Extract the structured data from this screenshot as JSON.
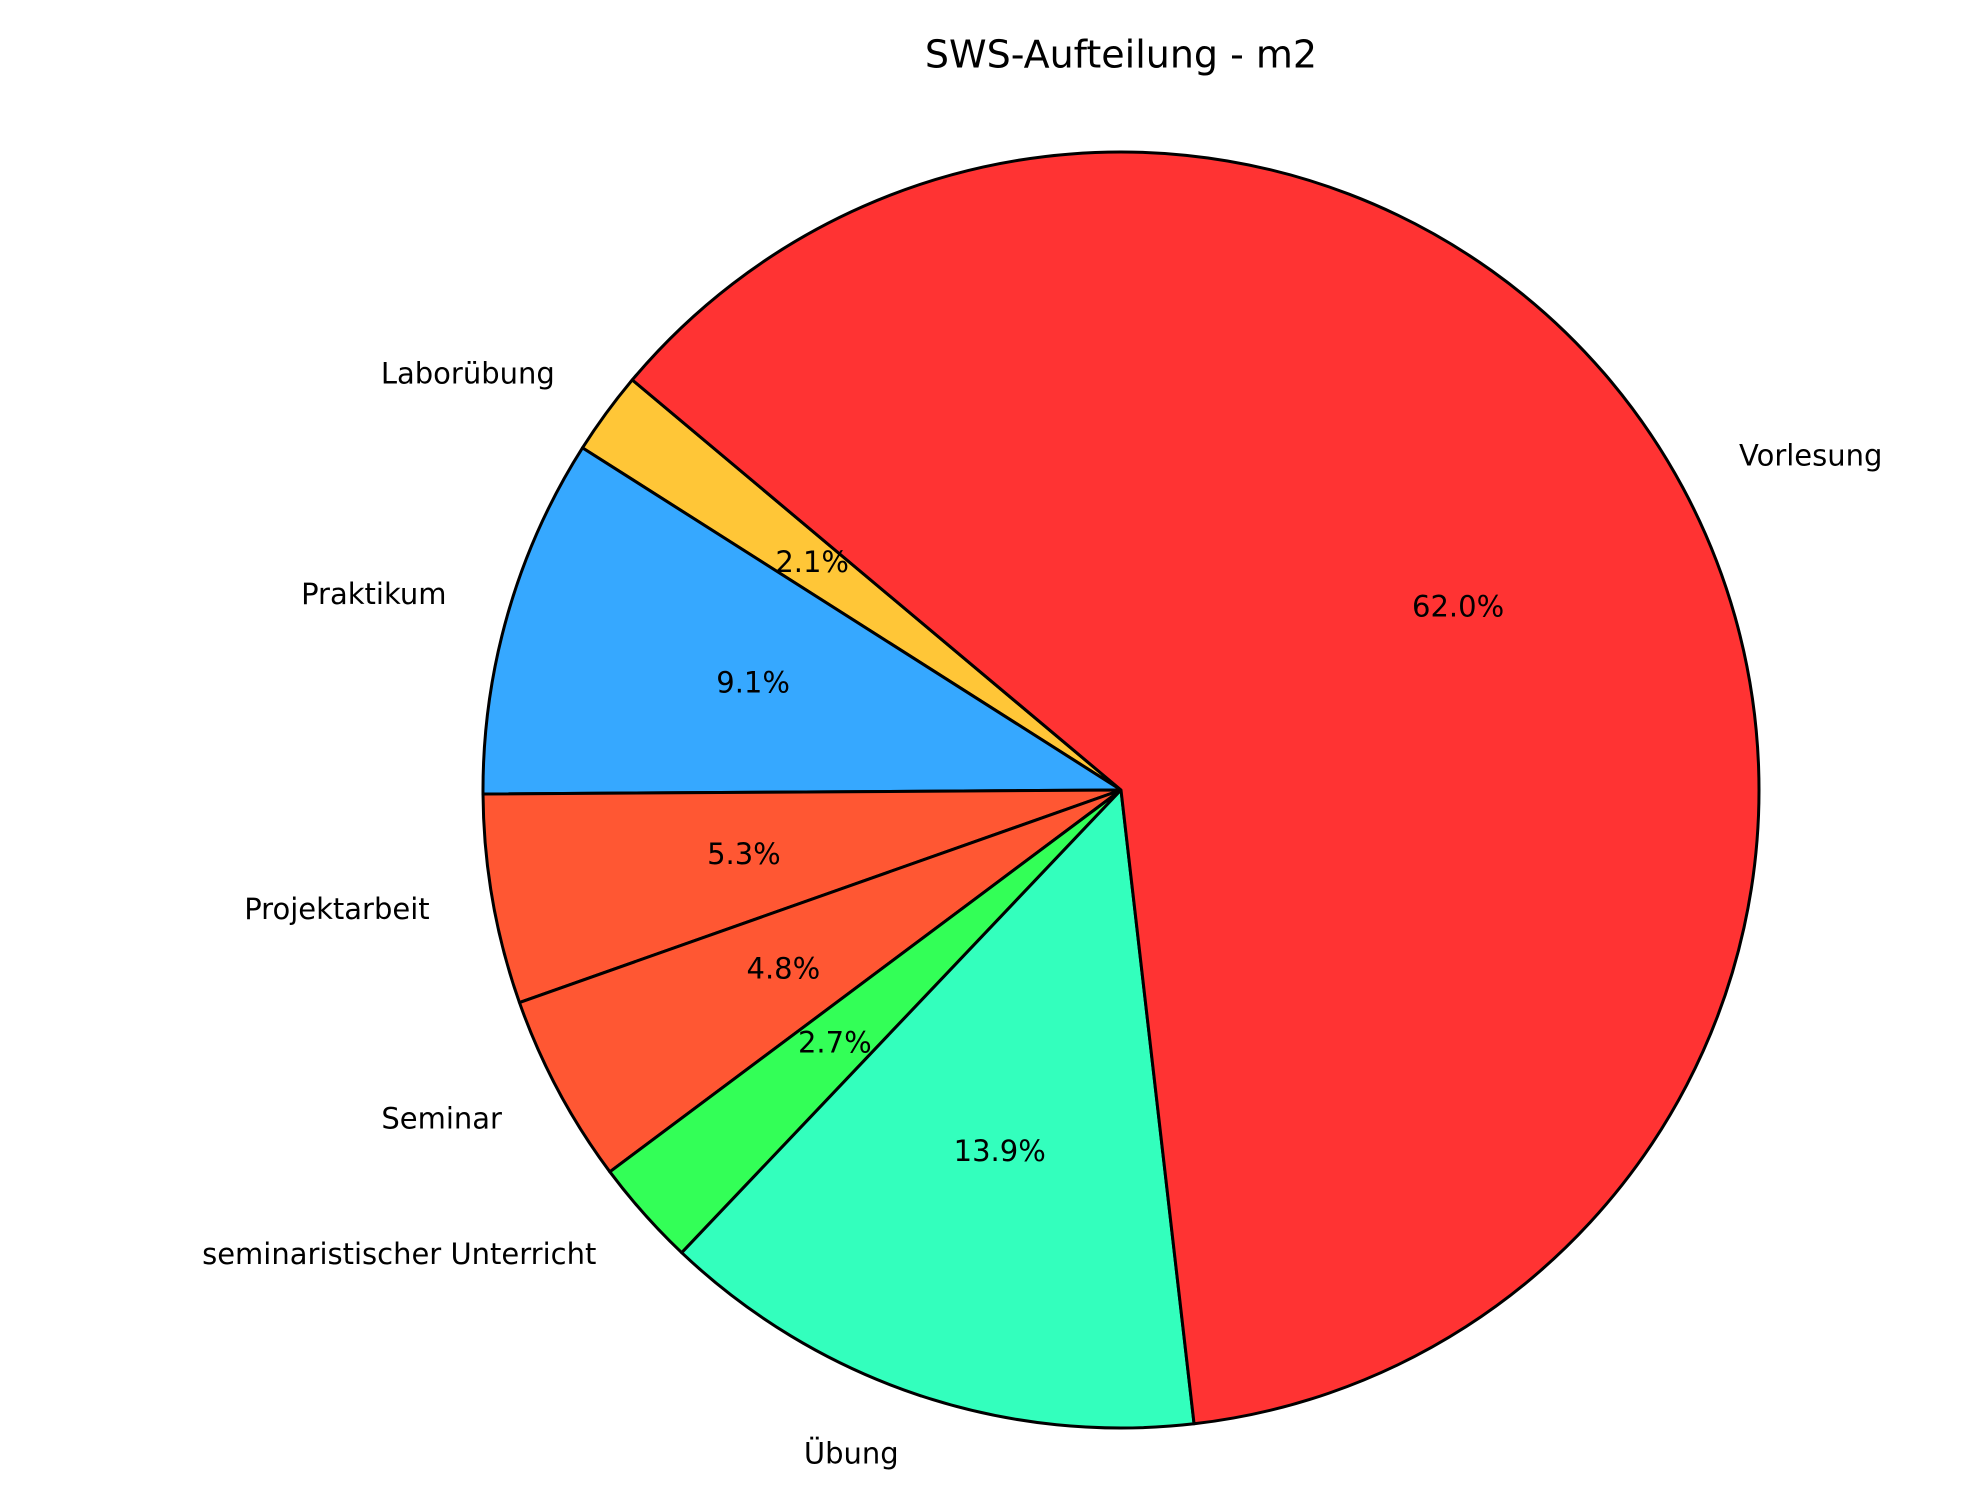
{
  "chart_data": {
    "type": "pie",
    "title": "SWS-Aufteilung - m2",
    "categories": [
      "Laborübung",
      "Praktikum",
      "Projektarbeit",
      "Seminar",
      "seminaristischer Unterricht",
      "Übung",
      "Vorlesung"
    ],
    "values": [
      2.1,
      9.1,
      5.3,
      4.8,
      2.7,
      13.9,
      62.0
    ],
    "value_labels": [
      "2.1%",
      "9.1%",
      "5.3%",
      "4.8%",
      "2.7%",
      "13.9%",
      "62.0%"
    ],
    "colors": [
      "#ffc637",
      "#36a8ff",
      "#ff5733",
      "#ff5733",
      "#33ff57",
      "#33ffbd",
      "#ff3333"
    ],
    "start_angle": 140
  }
}
